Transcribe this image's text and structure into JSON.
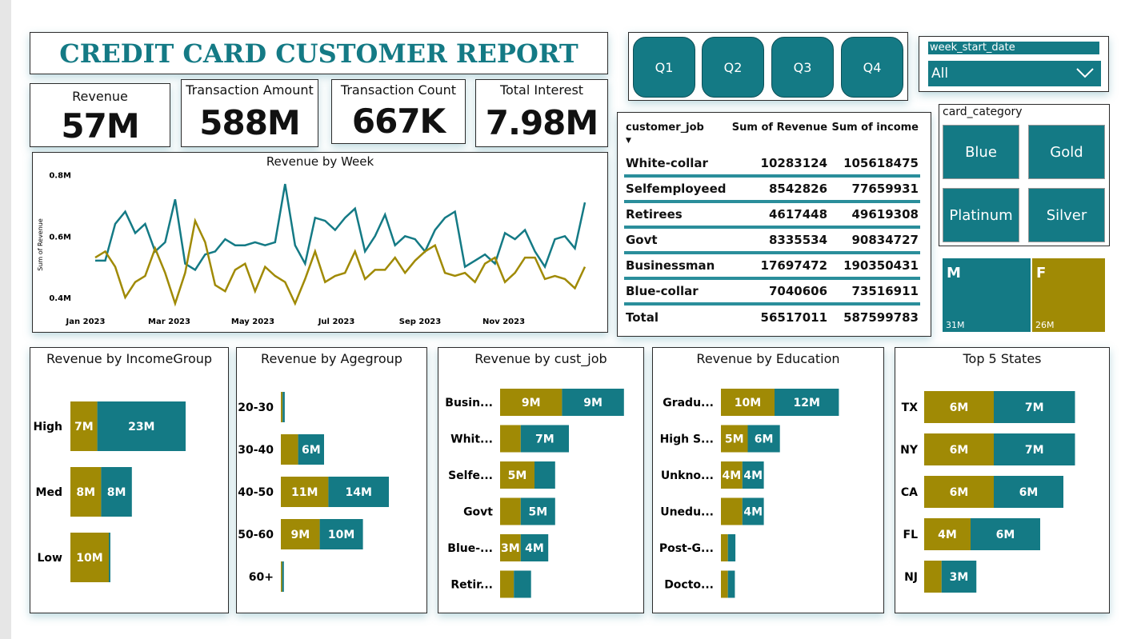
{
  "title": "CREDIT CARD CUSTOMER REPORT",
  "kpis": [
    {
      "label": "Revenue",
      "value": "57M"
    },
    {
      "label": "Transaction Amount",
      "value": "588M"
    },
    {
      "label": "Transaction Count",
      "value": "667K"
    },
    {
      "label": "Total Interest",
      "value": "7.98M"
    }
  ],
  "quarters": [
    "Q1",
    "Q2",
    "Q3",
    "Q4"
  ],
  "week_slicer": {
    "label": "week_start_date",
    "selected": "All"
  },
  "card_category": {
    "label": "card_category",
    "options": [
      "Blue",
      "Gold",
      "Platinum",
      "Silver"
    ]
  },
  "gender": [
    {
      "label": "M",
      "value": "31M",
      "color": "#147a85"
    },
    {
      "label": "F",
      "value": "26M",
      "color": "#a08a05"
    }
  ],
  "job_table": {
    "headers": [
      "customer_job",
      "Sum of Revenue",
      "Sum of income"
    ],
    "rows": [
      [
        "White-collar",
        "10283124",
        "105618475"
      ],
      [
        "Selfemployeed",
        "8542826",
        "77659931"
      ],
      [
        "Retirees",
        "4617448",
        "49619308"
      ],
      [
        "Govt",
        "8335534",
        "90834727"
      ],
      [
        "Businessman",
        "17697472",
        "190350431"
      ],
      [
        "Blue-collar",
        "7040606",
        "73516911"
      ]
    ],
    "total": [
      "Total",
      "56517011",
      "587599783"
    ]
  },
  "colors": {
    "teal": "#147a85",
    "gold": "#a08a05"
  },
  "chart_data": [
    {
      "type": "line",
      "title": "Revenue by Week",
      "ylabel": "Sum of Revenue",
      "ylim": [
        0.35,
        0.82
      ],
      "y_ticks": [
        "0.4M",
        "0.6M",
        "0.8M"
      ],
      "x_ticks": [
        "Jan 2023",
        "Mar 2023",
        "May 2023",
        "Jul 2023",
        "Sep 2023",
        "Nov 2023"
      ],
      "series": [
        {
          "values": [
            0.52,
            0.52,
            0.64,
            0.68,
            0.61,
            0.64,
            0.55,
            0.58,
            0.72,
            0.51,
            0.49,
            0.54,
            0.55,
            0.59,
            0.57,
            0.57,
            0.58,
            0.57,
            0.58,
            0.77,
            0.57,
            0.51,
            0.66,
            0.65,
            0.62,
            0.66,
            0.69,
            0.55,
            0.6,
            0.67,
            0.57,
            0.6,
            0.59,
            0.55,
            0.62,
            0.66,
            0.68,
            0.5,
            0.52,
            0.54,
            0.51,
            0.61,
            0.59,
            0.62,
            0.55,
            0.5,
            0.59,
            0.6,
            0.56,
            0.71
          ]
        },
        {
          "values": [
            0.53,
            0.55,
            0.5,
            0.4,
            0.45,
            0.47,
            0.56,
            0.48,
            0.38,
            0.48,
            0.65,
            0.58,
            0.44,
            0.42,
            0.49,
            0.51,
            0.42,
            0.5,
            0.47,
            0.45,
            0.38,
            0.46,
            0.55,
            0.45,
            0.47,
            0.48,
            0.55,
            0.46,
            0.49,
            0.49,
            0.53,
            0.48,
            0.52,
            0.55,
            0.57,
            0.48,
            0.47,
            0.48,
            0.45,
            0.51,
            0.53,
            0.45,
            0.48,
            0.53,
            0.53,
            0.46,
            0.47,
            0.46,
            0.43,
            0.5
          ]
        }
      ]
    },
    {
      "type": "bar",
      "title": "Revenue by IncomeGroup",
      "categories": [
        "High",
        "Med",
        "Low"
      ],
      "series": [
        {
          "values": [
            7,
            8,
            10
          ],
          "labels": [
            "7M",
            "8M",
            "10M"
          ]
        },
        {
          "values": [
            23,
            8,
            0.4
          ],
          "labels": [
            "23M",
            "8M",
            ""
          ]
        }
      ]
    },
    {
      "type": "bar",
      "title": "Revenue by Agegroup",
      "categories": [
        "20-30",
        "30-40",
        "40-50",
        "50-60",
        "60+"
      ],
      "series": [
        {
          "values": [
            0.4,
            4,
            11,
            9,
            0.3
          ],
          "labels": [
            "",
            "",
            "11M",
            "9M",
            ""
          ]
        },
        {
          "values": [
            0.5,
            6,
            14,
            10,
            0.4
          ],
          "labels": [
            "",
            "6M",
            "14M",
            "10M",
            ""
          ]
        }
      ]
    },
    {
      "type": "bar",
      "title": "Revenue by cust_job",
      "categories": [
        "Busin...",
        "Whit...",
        "Selfe...",
        "Govt",
        "Blue-...",
        "Retir..."
      ],
      "series": [
        {
          "values": [
            9,
            3,
            5,
            3,
            3,
            2
          ],
          "labels": [
            "9M",
            "",
            "5M",
            "",
            "3M",
            ""
          ]
        },
        {
          "values": [
            9,
            7,
            3,
            5,
            4,
            2.5
          ],
          "labels": [
            "9M",
            "7M",
            "",
            "5M",
            "4M",
            ""
          ]
        }
      ]
    },
    {
      "type": "bar",
      "title": "Revenue by Education",
      "categories": [
        "Gradu...",
        "High S...",
        "Unkno...",
        "Unedu...",
        "Post-G...",
        "Docto..."
      ],
      "series": [
        {
          "values": [
            10,
            5,
            4,
            4,
            1.3,
            1.3
          ],
          "labels": [
            "10M",
            "5M",
            "4M",
            "",
            "",
            ""
          ]
        },
        {
          "values": [
            12,
            6,
            4,
            4,
            1.4,
            1.3
          ],
          "labels": [
            "12M",
            "6M",
            "4M",
            "4M",
            "",
            ""
          ]
        }
      ]
    },
    {
      "type": "bar",
      "title": "Top 5 States",
      "categories": [
        "TX",
        "NY",
        "CA",
        "FL",
        "NJ"
      ],
      "series": [
        {
          "values": [
            6,
            6,
            6,
            4,
            1.5
          ],
          "labels": [
            "6M",
            "6M",
            "6M",
            "4M",
            ""
          ]
        },
        {
          "values": [
            7,
            7,
            6,
            6,
            3
          ],
          "labels": [
            "7M",
            "7M",
            "6M",
            "6M",
            "3M"
          ]
        }
      ]
    }
  ]
}
